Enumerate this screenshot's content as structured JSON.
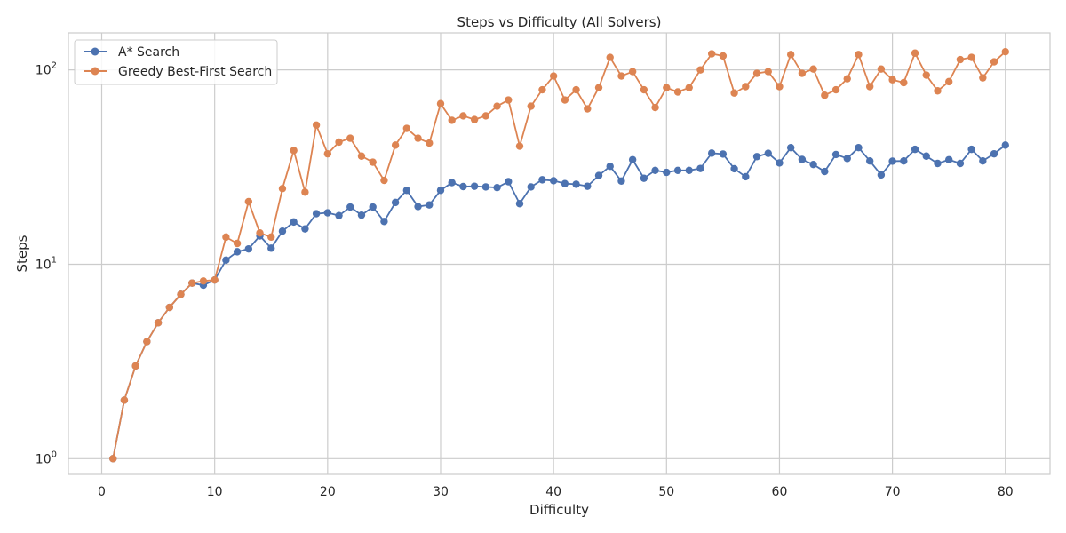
{
  "chart_data": {
    "type": "line",
    "title": "Steps vs Difficulty (All Solvers)",
    "xlabel": "Difficulty",
    "ylabel": "Steps",
    "xlim": [
      -2.95,
      83.95
    ],
    "ylim": [
      0.83,
      155
    ],
    "yscale": "log",
    "grid": true,
    "legend": "top-left",
    "x": [
      1,
      2,
      3,
      4,
      5,
      6,
      7,
      8,
      9,
      10,
      11,
      12,
      13,
      14,
      15,
      16,
      17,
      18,
      19,
      20,
      21,
      22,
      23,
      24,
      25,
      26,
      27,
      28,
      29,
      30,
      31,
      32,
      33,
      34,
      35,
      36,
      37,
      38,
      39,
      40,
      41,
      42,
      43,
      44,
      45,
      46,
      47,
      48,
      49,
      50,
      51,
      52,
      53,
      54,
      55,
      56,
      57,
      58,
      59,
      60,
      61,
      62,
      63,
      64,
      65,
      66,
      67,
      68,
      69,
      70,
      71,
      72,
      73,
      74,
      75,
      76,
      77,
      78,
      79,
      80
    ],
    "xticks": [
      0,
      10,
      20,
      30,
      40,
      50,
      60,
      70,
      80
    ],
    "xtick_labels": [
      "0",
      "10",
      "20",
      "30",
      "40",
      "50",
      "60",
      "70",
      "80"
    ],
    "yticks": [
      1,
      10,
      100
    ],
    "ytick_labels": [
      {
        "base": "10",
        "exp": "0"
      },
      {
        "base": "10",
        "exp": "1"
      },
      {
        "base": "10",
        "exp": "2"
      }
    ],
    "series": [
      {
        "name": "A* Search",
        "color": "#4c72b0",
        "values": [
          1,
          2,
          3,
          4,
          5,
          6,
          7,
          8,
          7.8,
          8.3,
          10.5,
          11.6,
          12,
          14,
          12.1,
          14.8,
          16.5,
          15.2,
          18.2,
          18.4,
          17.8,
          19.7,
          17.9,
          19.7,
          16.6,
          20.8,
          24,
          19.8,
          20.2,
          24,
          26.3,
          25.1,
          25.2,
          25,
          24.8,
          26.6,
          20.5,
          25,
          27.2,
          26.9,
          26,
          25.8,
          25.2,
          28.6,
          31.9,
          26.8,
          34.5,
          27.7,
          30.4,
          29.7,
          30.4,
          30.4,
          31.1,
          37.3,
          36.9,
          31,
          28.2,
          35.8,
          37.2,
          33.2,
          39.8,
          34.6,
          32.6,
          30,
          36.7,
          35,
          39.8,
          34,
          28.8,
          33.9,
          34,
          39,
          36,
          33,
          34.5,
          33,
          39,
          34,
          37,
          41
        ]
      },
      {
        "name": "Greedy Best-First Search",
        "color": "#dd8452",
        "values": [
          1,
          2,
          3,
          4,
          5,
          6,
          7,
          8,
          8.2,
          8.3,
          13.8,
          12.8,
          21,
          14.5,
          13.8,
          24.5,
          38.5,
          23.5,
          52,
          37,
          42.5,
          44.5,
          36,
          33.5,
          27,
          41,
          50,
          44.5,
          42,
          67,
          55,
          58,
          55.5,
          58,
          65,
          70,
          40.5,
          65,
          79,
          93,
          70,
          79,
          63,
          81,
          116,
          93,
          98,
          79,
          64,
          81,
          77,
          81,
          100,
          121,
          118,
          76,
          82,
          96,
          98,
          82,
          120,
          96,
          101,
          74,
          79,
          90,
          120,
          82,
          101,
          89,
          86,
          122,
          94,
          78,
          87,
          113,
          116,
          91,
          110,
          124
        ]
      }
    ]
  }
}
